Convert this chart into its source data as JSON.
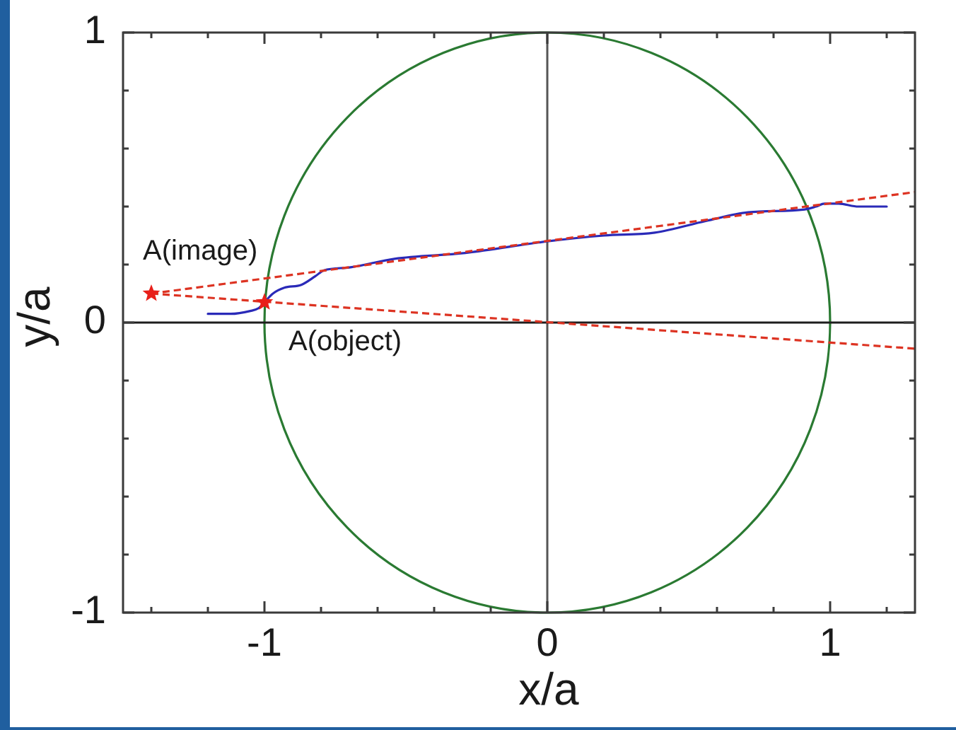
{
  "chart_data": {
    "type": "line",
    "xlabel": "x/a",
    "ylabel": "y/a",
    "xlim": [
      -1.5,
      1.3
    ],
    "ylim": [
      -1,
      1
    ],
    "xticks": [
      {
        "value": -1.4,
        "label": null
      },
      {
        "value": -1.2,
        "label": null
      },
      -1,
      {
        "value": -0.8,
        "label": null
      },
      {
        "value": -0.6,
        "label": null
      },
      {
        "value": -0.4,
        "label": null
      },
      {
        "value": -0.2,
        "label": null
      },
      0,
      {
        "value": 0.2,
        "label": null
      },
      {
        "value": 0.4,
        "label": null
      },
      {
        "value": 0.6,
        "label": null
      },
      {
        "value": 0.8,
        "label": null
      },
      1,
      {
        "value": 1.2,
        "label": null
      }
    ],
    "yticks": [
      -1,
      {
        "value": -0.8,
        "label": null
      },
      {
        "value": -0.6,
        "label": null
      },
      {
        "value": -0.4,
        "label": null
      },
      {
        "value": -0.2,
        "label": null
      },
      0,
      {
        "value": 0.2,
        "label": null
      },
      {
        "value": 0.4,
        "label": null
      },
      {
        "value": 0.6,
        "label": null
      },
      {
        "value": 0.8,
        "label": null
      },
      1
    ],
    "grid": false,
    "legend": false,
    "ref_lines": [
      {
        "axis": "x",
        "value": 0,
        "color": "#555555"
      },
      {
        "axis": "y",
        "value": 0,
        "color": "#1e1e1e"
      }
    ],
    "annotations": [
      {
        "text": "A(image)",
        "x": -1.4,
        "y": 0.1
      },
      {
        "text": "A(object)",
        "x": -1,
        "y": 0.07
      }
    ],
    "series": [
      {
        "color": "#2a2ab8",
        "marker": "none",
        "x": [
          -1.2,
          -1.12,
          -1.05,
          -1.02,
          -1,
          -0.97,
          -0.93,
          -0.87,
          -0.82,
          -0.79,
          -0.7,
          -0.54,
          -0.29,
          0,
          0.2,
          0.38,
          0.56,
          0.71,
          0.91,
          0.95,
          0.98,
          1.03,
          1.1,
          1.2
        ],
        "values": [
          0.03,
          0.03,
          0.04,
          0.05,
          0.07,
          0.1,
          0.12,
          0.13,
          0.16,
          0.18,
          0.19,
          0.22,
          0.24,
          0.28,
          0.3,
          0.31,
          0.35,
          0.38,
          0.39,
          0.4,
          0.41,
          0.41,
          0.4,
          0.4
        ]
      },
      {
        "color": "#dd3322",
        "marker": "none",
        "line_style": "dashed",
        "x": [
          -1.4,
          1.3
        ],
        "values": [
          0.1,
          0.45
        ]
      },
      {
        "color": "#dd3322",
        "marker": "none",
        "line_style": "dashed",
        "x": [
          -1.4,
          1.3
        ],
        "values": [
          0.1,
          -0.09
        ]
      },
      {
        "type": "scatter",
        "color": "#e8201a",
        "marker": "star",
        "x": [
          -1.4,
          -1
        ],
        "values": [
          0.1,
          0.07
        ]
      }
    ]
  }
}
